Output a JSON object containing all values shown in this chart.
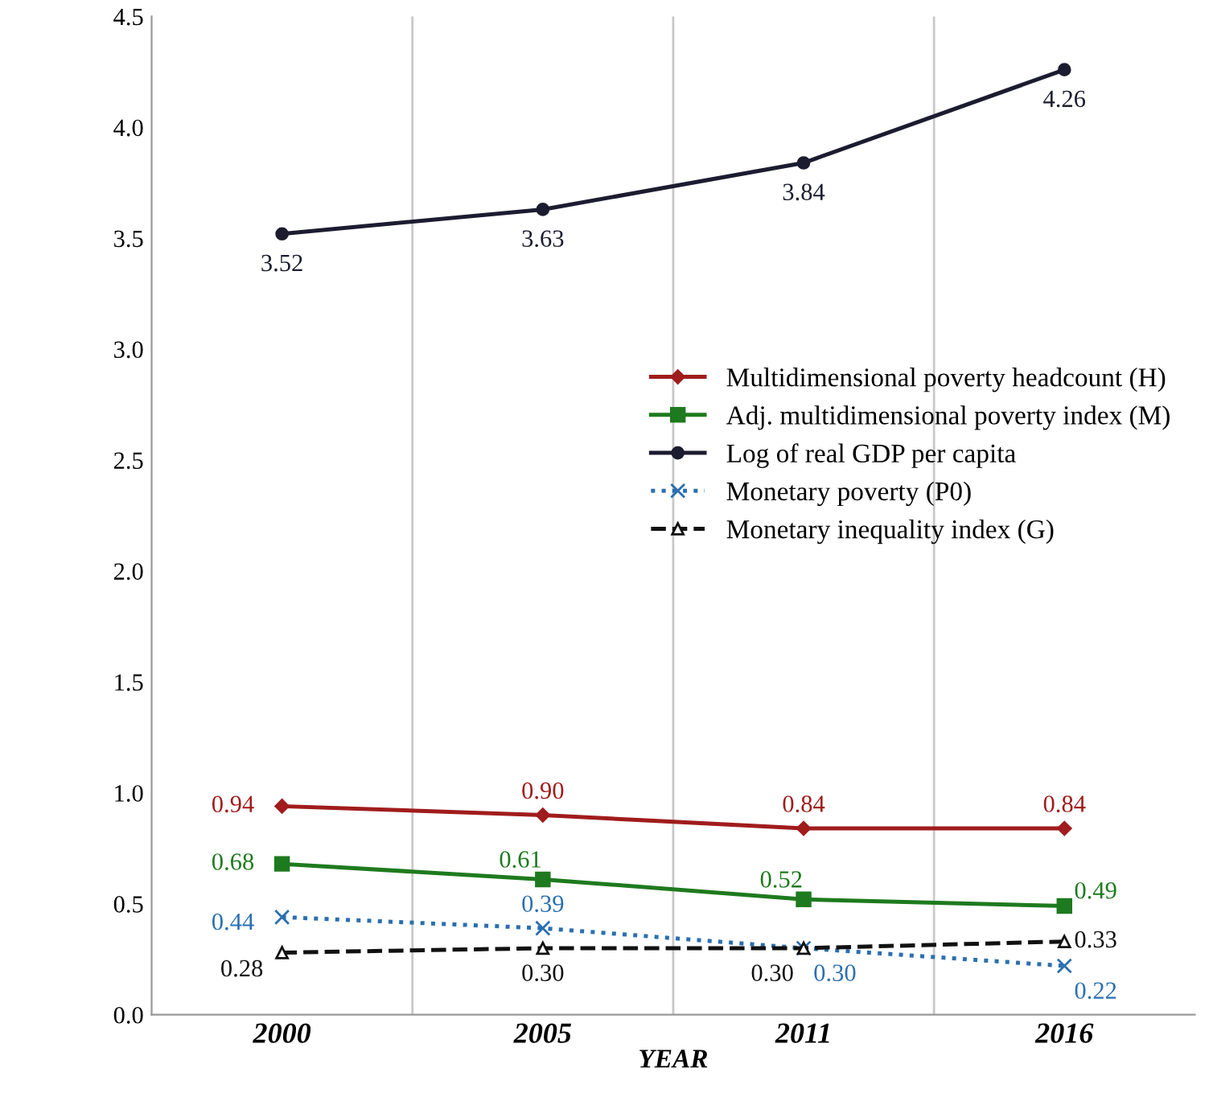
{
  "chart_data": {
    "type": "line",
    "xlabel": "YEAR",
    "categories": [
      "2000",
      "2005",
      "2011",
      "2016"
    ],
    "series": [
      {
        "name": "Multidimensional poverty headcount (H)",
        "color": "#a01c1c",
        "values": [
          0.94,
          0.9,
          0.84,
          0.84
        ],
        "value_labels": [
          "0.94",
          "0.90",
          "0.84",
          "0.84"
        ],
        "marker": "diamond",
        "line_style": "solid"
      },
      {
        "name": "Adj. multidimensional poverty index (M)",
        "color": "#1e7a1e",
        "values": [
          0.68,
          0.61,
          0.52,
          0.49
        ],
        "value_labels": [
          "0.68",
          "0.61",
          "0.52",
          "0.49"
        ],
        "marker": "square",
        "line_style": "solid"
      },
      {
        "name": "Log of real GDP per capita",
        "color": "#1c1c30",
        "values": [
          3.52,
          3.63,
          3.84,
          4.26
        ],
        "value_labels": [
          "3.52",
          "3.63",
          "3.84",
          "4.26"
        ],
        "marker": "circle",
        "line_style": "solid"
      },
      {
        "name": "Monetary poverty (P0)",
        "color": "#2a6fb0",
        "values": [
          0.44,
          0.39,
          0.3,
          0.22
        ],
        "value_labels": [
          "0.44",
          "0.39",
          "0.30",
          "0.22"
        ],
        "marker": "cross",
        "line_style": "dotted"
      },
      {
        "name": "Monetary inequality index (G)",
        "color": "#111111",
        "values": [
          0.28,
          0.3,
          0.3,
          0.33
        ],
        "value_labels": [
          "0.28",
          "0.30",
          "0.30",
          "0.33"
        ],
        "marker": "triangle",
        "line_style": "dashed"
      }
    ],
    "ylim": [
      0.0,
      4.5
    ],
    "yticks": [
      {
        "value": 0,
        "label": "0.0"
      },
      0.5,
      {
        "value": 1,
        "label": "1.0"
      },
      1.5,
      {
        "value": 2,
        "label": "2.0"
      },
      2.5,
      {
        "value": 3,
        "label": "3.0"
      },
      3.5,
      {
        "value": 4,
        "label": "4.0"
      },
      4.5
    ],
    "grid": "x",
    "legend": "center right"
  }
}
